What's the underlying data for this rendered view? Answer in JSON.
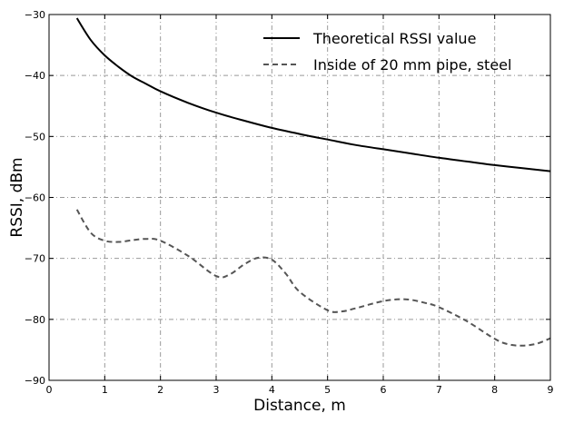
{
  "chart_data": {
    "type": "line",
    "xlabel": "Distance, m",
    "ylabel": "RSSI, dBm",
    "xlim": [
      0,
      9
    ],
    "ylim": [
      -90,
      -30
    ],
    "xticks": [
      0,
      1,
      2,
      3,
      4,
      5,
      6,
      7,
      8,
      9
    ],
    "yticks": [
      -90,
      -80,
      -70,
      -60,
      -50,
      -40,
      -30
    ],
    "grid": true,
    "legend_position": "top-right",
    "series": [
      {
        "name": "Theoretical RSSI value",
        "color": "#000000",
        "style": "solid",
        "x": [
          0.5,
          0.75,
          1.0,
          1.25,
          1.5,
          1.75,
          2.0,
          2.5,
          3.0,
          3.5,
          4.0,
          4.5,
          5.0,
          5.5,
          6.0,
          6.5,
          7.0,
          7.5,
          8.0,
          8.5,
          9.0
        ],
        "y": [
          -30.6,
          -34.2,
          -36.7,
          -38.6,
          -40.2,
          -41.4,
          -42.6,
          -44.5,
          -46.1,
          -47.4,
          -48.6,
          -49.6,
          -50.5,
          -51.4,
          -52.1,
          -52.8,
          -53.5,
          -54.1,
          -54.7,
          -55.2,
          -55.7
        ]
      },
      {
        "name": "Inside of 20 mm pipe, steel",
        "color": "#555555",
        "style": "dashed",
        "x": [
          0.5,
          0.75,
          1.0,
          1.25,
          1.5,
          1.75,
          2.0,
          2.5,
          3.0,
          3.25,
          3.5,
          3.75,
          4.0,
          4.25,
          4.5,
          5.0,
          5.25,
          5.5,
          6.0,
          6.4,
          6.75,
          7.0,
          7.5,
          8.0,
          8.25,
          8.5,
          8.75,
          9.0
        ],
        "y": [
          -62.0,
          -65.8,
          -67.1,
          -67.3,
          -67.0,
          -66.8,
          -67.1,
          -69.6,
          -72.9,
          -72.6,
          -71.0,
          -69.9,
          -70.2,
          -72.5,
          -75.5,
          -78.5,
          -78.7,
          -78.2,
          -77.0,
          -76.7,
          -77.3,
          -78.0,
          -80.3,
          -83.2,
          -84.1,
          -84.3,
          -84.0,
          -83.1
        ]
      }
    ]
  }
}
